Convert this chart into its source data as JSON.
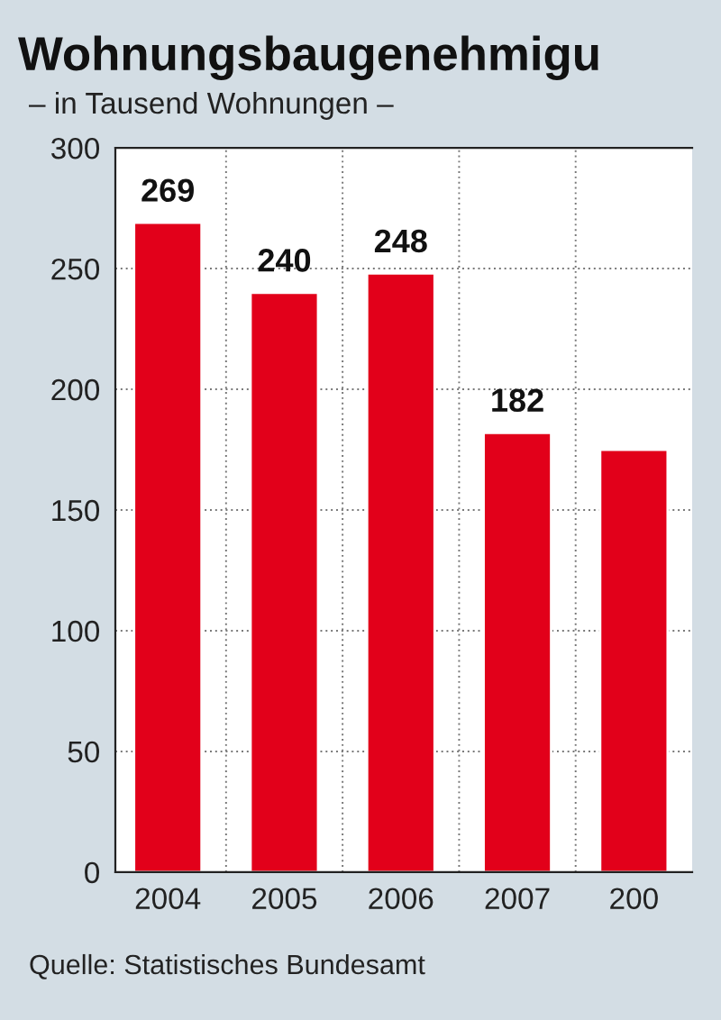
{
  "chart_data": {
    "type": "bar",
    "title": "Wohnungsbaugenehmigu",
    "subtitle": "– in Tausend Wohnungen –",
    "categories": [
      "2004",
      "2005",
      "2006",
      "2007",
      "200"
    ],
    "values": [
      269,
      240,
      248,
      182,
      175
    ],
    "value_labels": [
      "269",
      "240",
      "248",
      "182",
      null
    ],
    "color": "#e2001a",
    "ylim": [
      0,
      300
    ],
    "yticks": [
      0,
      50,
      100,
      150,
      200,
      250,
      300
    ],
    "grid": true,
    "annotations": [
      "Quelle: Statistisches Bundesamt"
    ]
  }
}
